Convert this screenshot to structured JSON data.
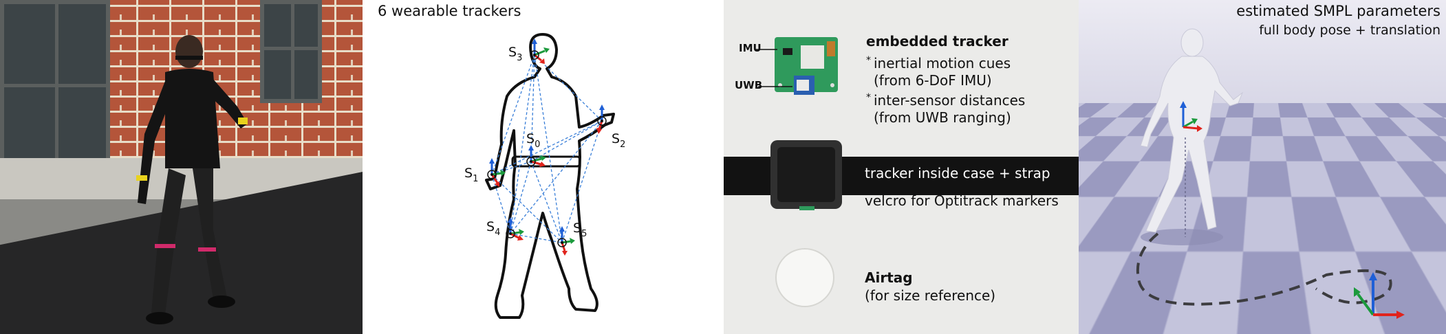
{
  "panel_diagram": {
    "title": "6 wearable trackers",
    "sensors": [
      {
        "main": "S",
        "sub": "3"
      },
      {
        "main": "S",
        "sub": "0"
      },
      {
        "main": "S",
        "sub": "2"
      },
      {
        "main": "S",
        "sub": "1"
      },
      {
        "main": "S",
        "sub": "4"
      },
      {
        "main": "S",
        "sub": "5"
      }
    ]
  },
  "panel_hardware": {
    "label_imu": "IMU",
    "label_uwb": "UWB",
    "embedded_title": "embedded tracker",
    "bullet_mark": "*",
    "bullet1_line1": "inertial motion cues",
    "bullet1_line2": "(from 6-DoF IMU)",
    "bullet2_line1": "inter-sensor distances",
    "bullet2_line2": "(from UWB ranging)",
    "strap_text": "tracker inside case + strap",
    "velcro_text": "velcro for Optitrack markers",
    "airtag_title": "Airtag",
    "airtag_sub": "(for size reference)"
  },
  "panel_render": {
    "title": "estimated SMPL parameters",
    "subtitle": "full body pose + translation"
  },
  "colors": {
    "axis_red": "#e0231c",
    "axis_green": "#1b9a3c",
    "axis_blue": "#1f5fd6",
    "dotted_link": "#3a7fd8"
  }
}
